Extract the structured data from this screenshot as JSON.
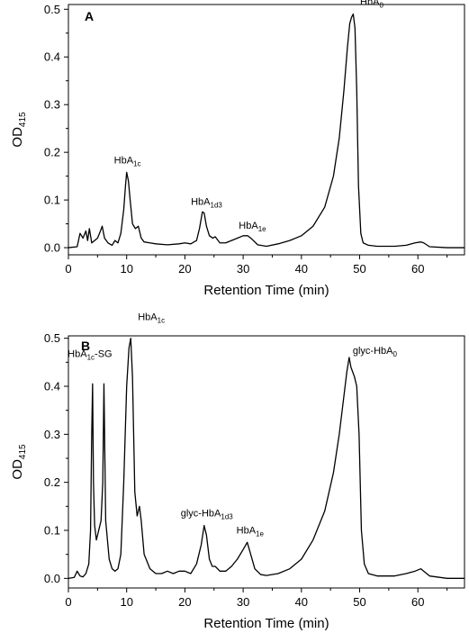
{
  "chart_data": [
    {
      "type": "line",
      "panel": "A",
      "xlabel": "Retention Time (min)",
      "ylabel": "OD",
      "ylabel_sub": "415",
      "xlim": [
        0,
        68
      ],
      "ylim": [
        -0.015,
        0.51
      ],
      "xticks": [
        0,
        10,
        20,
        30,
        40,
        50,
        60
      ],
      "yticks": [
        0.0,
        0.1,
        0.2,
        0.3,
        0.4,
        0.5
      ],
      "ytick_labels": [
        "0.0",
        "0.1",
        "0.2",
        "0.3",
        "0.4",
        "0.5"
      ],
      "series": [
        {
          "x": [
            0,
            1.5,
            2,
            2.5,
            3,
            3.3,
            3.6,
            4.0,
            4.5,
            5.0,
            5.5,
            5.8,
            6.2,
            6.8,
            7.5,
            8.0,
            8.5,
            9.0,
            9.5,
            9.8,
            10.0,
            10.3,
            10.6,
            11.0,
            11.5,
            12.0,
            12.5,
            13.0,
            14.0,
            15.0,
            17.0,
            19.0,
            20.0,
            21.0,
            22.0,
            22.5,
            23.0,
            23.3,
            23.7,
            24.2,
            24.8,
            25.2,
            26.0,
            27.0,
            28.0,
            29.0,
            30.0,
            30.8,
            31.5,
            32.5,
            34.0,
            36.0,
            38.0,
            40.0,
            42.0,
            44.0,
            45.5,
            46.5,
            47.3,
            47.9,
            48.3,
            48.6,
            48.9,
            49.2,
            49.5,
            49.8,
            50.2,
            50.6,
            51.5,
            53.0,
            56.0,
            58.0,
            59.5,
            60.5,
            61.0,
            62.0,
            65.0,
            68.0
          ],
          "y": [
            0.0,
            0.002,
            0.03,
            0.02,
            0.035,
            0.015,
            0.04,
            0.01,
            0.015,
            0.02,
            0.035,
            0.045,
            0.02,
            0.01,
            0.005,
            0.015,
            0.01,
            0.03,
            0.08,
            0.13,
            0.158,
            0.14,
            0.1,
            0.05,
            0.04,
            0.045,
            0.02,
            0.012,
            0.01,
            0.008,
            0.006,
            0.008,
            0.01,
            0.008,
            0.015,
            0.04,
            0.075,
            0.073,
            0.045,
            0.025,
            0.02,
            0.023,
            0.01,
            0.01,
            0.015,
            0.02,
            0.025,
            0.025,
            0.018,
            0.006,
            0.003,
            0.008,
            0.015,
            0.025,
            0.045,
            0.085,
            0.15,
            0.23,
            0.33,
            0.42,
            0.47,
            0.483,
            0.49,
            0.46,
            0.33,
            0.13,
            0.03,
            0.01,
            0.005,
            0.003,
            0.003,
            0.005,
            0.01,
            0.012,
            0.01,
            0.002,
            0.0,
            0.0
          ]
        }
      ],
      "annotations": [
        {
          "text": "HbA",
          "sub": "1c",
          "x": 10.3,
          "y": 0.158
        },
        {
          "text": "HbA",
          "sub": "1d3",
          "x": 23.2,
          "y": 0.075
        },
        {
          "text": "HbA",
          "sub": "1e",
          "x": 30.8,
          "y": 0.025
        },
        {
          "text": "HbA",
          "sub": "0",
          "x": 49.0,
          "y": 0.49
        }
      ],
      "panel_label": "A"
    },
    {
      "type": "line",
      "panel": "B",
      "xlabel": "Retention Time (min)",
      "ylabel": "OD",
      "ylabel_sub": "415",
      "xlim": [
        0,
        68
      ],
      "ylim": [
        -0.02,
        0.505
      ],
      "xticks": [
        0,
        10,
        20,
        30,
        40,
        50,
        60
      ],
      "yticks": [
        0.0,
        0.1,
        0.2,
        0.3,
        0.4,
        0.5
      ],
      "ytick_labels": [
        "0.0",
        "0.1",
        "0.2",
        "0.3",
        "0.4",
        "0.5"
      ],
      "series": [
        {
          "x": [
            0,
            1.0,
            1.5,
            2.0,
            2.5,
            3.0,
            3.5,
            3.8,
            4.0,
            4.15,
            4.3,
            4.5,
            4.8,
            5.2,
            5.6,
            5.9,
            6.1,
            6.4,
            7.0,
            7.5,
            8.0,
            8.5,
            9.0,
            9.5,
            10.0,
            10.4,
            10.7,
            11.0,
            11.4,
            11.8,
            12.2,
            12.5,
            13.0,
            14.0,
            15.0,
            16.0,
            17.0,
            18.0,
            19.0,
            20.0,
            21.0,
            22.0,
            22.8,
            23.3,
            23.7,
            24.2,
            24.7,
            25.2,
            26.0,
            27.0,
            28.0,
            29.0,
            30.0,
            30.7,
            31.3,
            32.0,
            33.0,
            34.0,
            36.0,
            38.0,
            40.0,
            42.0,
            44.0,
            45.5,
            46.5,
            47.3,
            47.8,
            48.2,
            48.5,
            48.8,
            49.1,
            49.5,
            49.9,
            50.3,
            50.8,
            51.5,
            53.0,
            56.0,
            58.0,
            59.5,
            60.5,
            61.0,
            62.0,
            65.0,
            68.0
          ],
          "y": [
            0.0,
            0.002,
            0.015,
            0.005,
            0.003,
            0.01,
            0.03,
            0.1,
            0.3,
            0.405,
            0.2,
            0.11,
            0.08,
            0.1,
            0.12,
            0.2,
            0.405,
            0.12,
            0.04,
            0.02,
            0.015,
            0.02,
            0.05,
            0.2,
            0.4,
            0.48,
            0.5,
            0.42,
            0.18,
            0.13,
            0.15,
            0.12,
            0.05,
            0.02,
            0.01,
            0.01,
            0.015,
            0.01,
            0.015,
            0.015,
            0.01,
            0.03,
            0.07,
            0.11,
            0.09,
            0.04,
            0.025,
            0.025,
            0.015,
            0.015,
            0.025,
            0.04,
            0.06,
            0.075,
            0.05,
            0.02,
            0.008,
            0.006,
            0.01,
            0.02,
            0.04,
            0.08,
            0.14,
            0.22,
            0.3,
            0.38,
            0.43,
            0.46,
            0.44,
            0.43,
            0.42,
            0.4,
            0.3,
            0.1,
            0.03,
            0.01,
            0.005,
            0.005,
            0.01,
            0.015,
            0.02,
            0.015,
            0.005,
            0.0,
            0.0
          ]
        }
      ],
      "annotations": [
        {
          "text": "HbA",
          "sub": "1c",
          "suffix": "-SG",
          "x": 4.2,
          "y": 0.405
        },
        {
          "text": "HbA",
          "sub": "1c",
          "x": 10.7,
          "y": 0.5
        },
        {
          "text": "glyc-HbA",
          "sub": "1d3",
          "x": 23.3,
          "y": 0.11
        },
        {
          "text": "HbA",
          "sub": "1e",
          "x": 30.7,
          "y": 0.075
        },
        {
          "text": "glyc-HbA",
          "sub": "0",
          "x": 48.2,
          "y": 0.46
        }
      ],
      "panel_label": "B"
    }
  ]
}
